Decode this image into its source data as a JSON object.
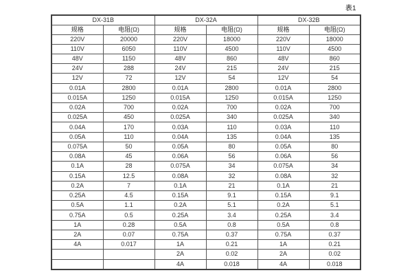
{
  "page": {
    "caption": "表1"
  },
  "table": {
    "groups": [
      {
        "name": "DX-31B",
        "spec_header": "规格",
        "resistance_header": "电阻(Ω)"
      },
      {
        "name": "DX-32A",
        "spec_header": "规格",
        "resistance_header": "电阻(Ω)"
      },
      {
        "name": "DX-32B",
        "spec_header": "规格",
        "resistance_header": "电阻(Ω)"
      }
    ],
    "rows": [
      [
        "220V",
        "20000",
        "220V",
        "18000",
        "220V",
        "18000"
      ],
      [
        "110V",
        "6050",
        "110V",
        "4500",
        "110V",
        "4500"
      ],
      [
        "48V",
        "1150",
        "48V",
        "860",
        "48V",
        "860"
      ],
      [
        "24V",
        "288",
        "24V",
        "215",
        "24V",
        "215"
      ],
      [
        "12V",
        "72",
        "12V",
        "54",
        "12V",
        "54"
      ],
      [
        "0.01A",
        "2800",
        "0.01A",
        "2800",
        "0.01A",
        "2800"
      ],
      [
        "0.015A",
        "1250",
        "0.015A",
        "1250",
        "0.015A",
        "1250"
      ],
      [
        "0.02A",
        "700",
        "0.02A",
        "700",
        "0.02A",
        "700"
      ],
      [
        "0.025A",
        "450",
        "0.025A",
        "340",
        "0.025A",
        "340"
      ],
      [
        "0.04A",
        "170",
        "0.03A",
        "110",
        "0.03A",
        "110"
      ],
      [
        "0.05A",
        "110",
        "0.04A",
        "135",
        "0.04A",
        "135"
      ],
      [
        "0.075A",
        "50",
        "0.05A",
        "80",
        "0.05A",
        "80"
      ],
      [
        "0.08A",
        "45",
        "0.06A",
        "56",
        "0.06A",
        "56"
      ],
      [
        "0.1A",
        "28",
        "0.075A",
        "34",
        "0.075A",
        "34"
      ],
      [
        "0.15A",
        "12.5",
        "0.08A",
        "32",
        "0.08A",
        "32"
      ],
      [
        "0.2A",
        "7",
        "0.1A",
        "21",
        "0.1A",
        "21"
      ],
      [
        "0.25A",
        "4.5",
        "0.15A",
        "9.1",
        "0.15A",
        "9.1"
      ],
      [
        "0.5A",
        "1.1",
        "0.2A",
        "5.1",
        "0.2A",
        "5.1"
      ],
      [
        "0.75A",
        "0.5",
        "0.25A",
        "3.4",
        "0.25A",
        "3.4"
      ],
      [
        "1A",
        "0.28",
        "0.5A",
        "0.8",
        "0.5A",
        "0.8"
      ],
      [
        "2A",
        "0.07",
        "0.75A",
        "0.37",
        "0.75A",
        "0.37"
      ],
      [
        "4A",
        "0.017",
        "1A",
        "0.21",
        "1A",
        "0.21"
      ],
      [
        "",
        "",
        "2A",
        "0.02",
        "2A",
        "0.02"
      ],
      [
        "",
        "",
        "4A",
        "0.018",
        "4A",
        "0.018"
      ]
    ]
  },
  "colors": {
    "background": "#ffffff",
    "text": "#333333",
    "inner_border": "#555555",
    "outer_border": "#3f3f3f"
  }
}
